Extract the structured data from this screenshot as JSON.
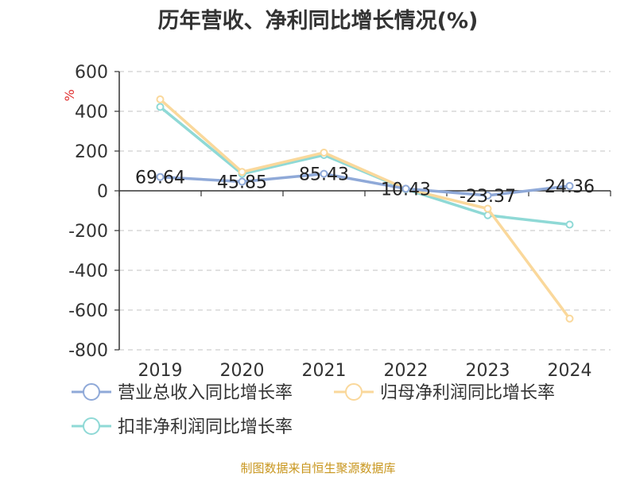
{
  "chart_data": {
    "type": "line",
    "title": "历年营收、净利同比增长情况(%)",
    "ylabel": "%",
    "xlabel": "",
    "x": [
      "2019",
      "2020",
      "2021",
      "2022",
      "2023",
      "2024"
    ],
    "ylim": [
      -800,
      600
    ],
    "yticks": [
      "600",
      "400",
      "200",
      "0",
      "-200",
      "-400",
      "-600",
      "-800"
    ],
    "grid": true,
    "legend_position": "bottom",
    "series": [
      {
        "name": "营业总收入同比增长率",
        "color": "#8fa9d8",
        "values": [
          69.64,
          45.85,
          85.43,
          10.43,
          -23.37,
          24.36
        ],
        "labels": [
          "69.64",
          "45.85",
          "85.43",
          "10.43",
          "-23.37",
          "24.36"
        ]
      },
      {
        "name": "归母净利润同比增长率",
        "color": "#fad89b",
        "values": [
          460,
          95,
          192,
          10,
          -90,
          -643
        ]
      },
      {
        "name": "扣非净利润同比增长率",
        "color": "#8fd9d6",
        "values": [
          422,
          85,
          180,
          8,
          -123,
          -170
        ]
      }
    ]
  },
  "source_note": "制图数据来自恒生聚源数据库"
}
